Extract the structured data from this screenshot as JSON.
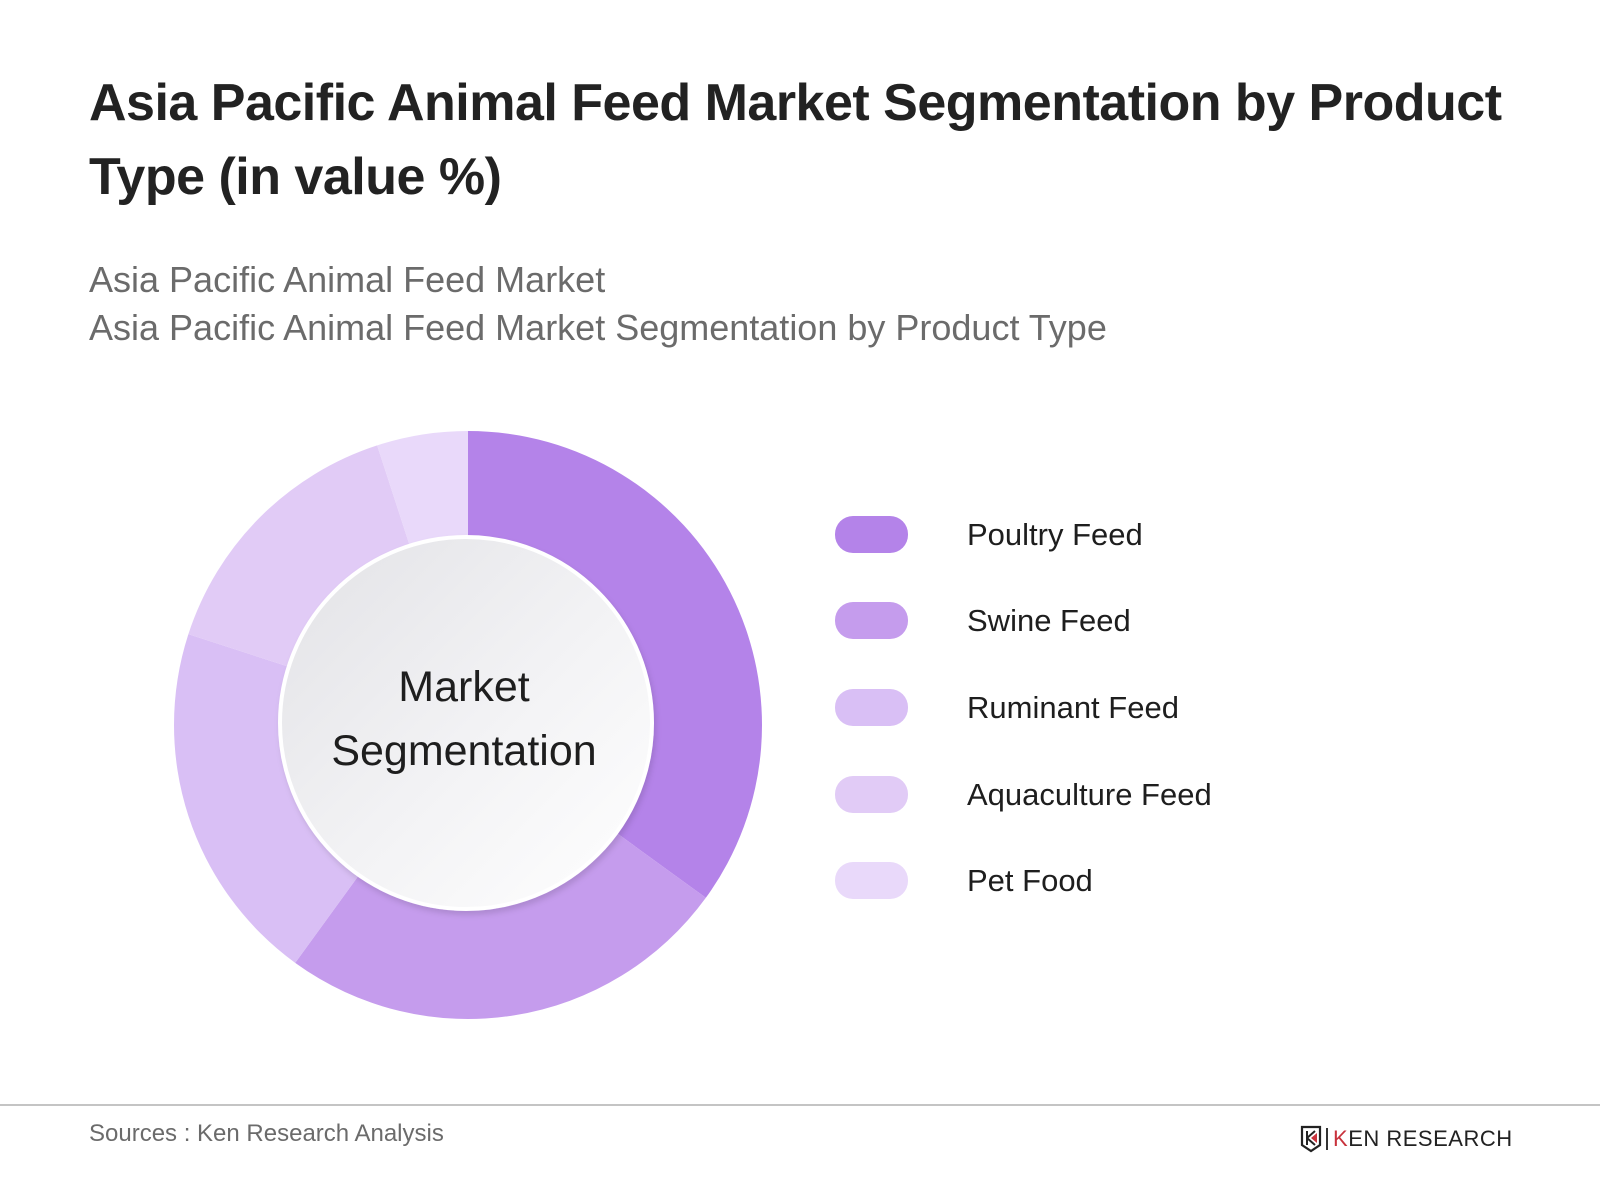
{
  "header": {
    "title": "Asia Pacific Animal Feed Market Segmentation by Product Type (in value %)",
    "subtitle_line1": "Asia Pacific Animal Feed Market",
    "subtitle_line2": "Asia Pacific Animal Feed Market Segmentation by Product Type"
  },
  "center_label": {
    "line1": "Market",
    "line2": "Segmentation"
  },
  "legend": [
    {
      "label": "Poultry Feed",
      "color": "#b483e9"
    },
    {
      "label": "Swine Feed",
      "color": "#c59ced"
    },
    {
      "label": "Ruminant Feed",
      "color": "#d9bff5"
    },
    {
      "label": "Aquaculture Feed",
      "color": "#e1cbf6"
    },
    {
      "label": "Pet Food",
      "color": "#e9d9fa"
    }
  ],
  "chart_data": {
    "type": "pie",
    "subtype": "donut",
    "title": "Asia Pacific Animal Feed Market Segmentation by Product Type (in value %)",
    "subtitle": "Asia Pacific Animal Feed Market Segmentation by Product Type",
    "center_text": "Market Segmentation",
    "categories": [
      "Poultry Feed",
      "Swine Feed",
      "Ruminant Feed",
      "Aquaculture Feed",
      "Pet Food"
    ],
    "values": [
      35,
      25,
      20,
      15,
      5
    ],
    "unit": "%",
    "colors": [
      "#b483e9",
      "#c59ced",
      "#d9bff5",
      "#e1cbf6",
      "#e9d9fa"
    ],
    "start_angle_deg": 0,
    "direction": "clockwise",
    "legend_position": "right",
    "data_labels": false
  },
  "footer": {
    "sources": "Sources : Ken Research Analysis",
    "logo_text": "KEN RESEARCH",
    "logo_accent_color": "#c8323c"
  }
}
